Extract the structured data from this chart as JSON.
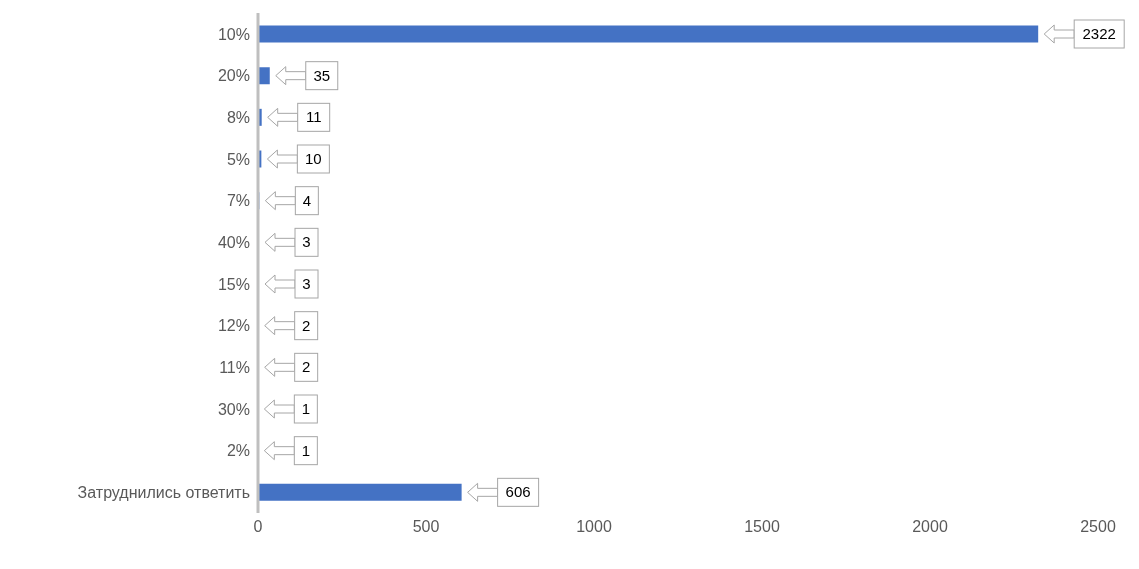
{
  "chart_data": {
    "type": "bar",
    "orientation": "horizontal",
    "categories": [
      "10%",
      "20%",
      "8%",
      "5%",
      "7%",
      "40%",
      "15%",
      "12%",
      "11%",
      "30%",
      "2%",
      "Затруднились ответить"
    ],
    "values": [
      2322,
      35,
      11,
      10,
      4,
      3,
      3,
      2,
      2,
      1,
      1,
      606
    ],
    "color": "#4472c4",
    "xlim": [
      0,
      2500
    ],
    "xticks": [
      0,
      500,
      1000,
      1500,
      2000,
      2500
    ],
    "grid": false,
    "legend": false,
    "data_labels": true
  }
}
